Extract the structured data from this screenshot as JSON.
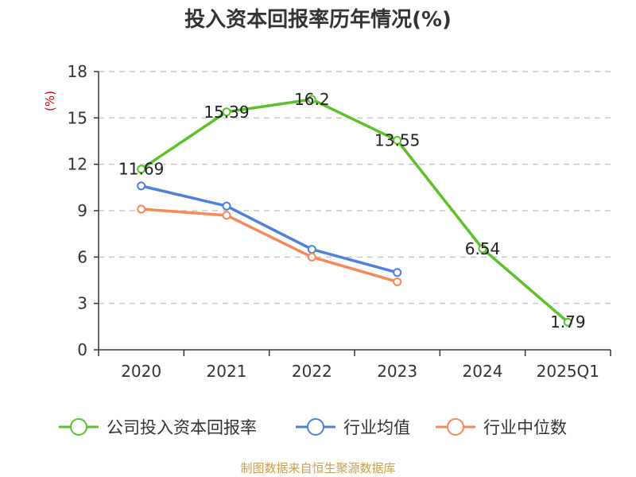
{
  "chart_data": {
    "type": "line",
    "title": "投入资本回报率历年情况(%)",
    "ylabel": "(%)",
    "xlabel": "",
    "categories": [
      "2020",
      "2021",
      "2022",
      "2023",
      "2024",
      "2025Q1"
    ],
    "ylim": [
      0,
      18
    ],
    "yticks": [
      0,
      3,
      6,
      9,
      12,
      15,
      18
    ],
    "grid": true,
    "legend_position": "bottom",
    "series": [
      {
        "name": "公司投入资本回报率",
        "color": "#5cc12b",
        "values": [
          11.69,
          15.39,
          16.2,
          13.55,
          6.54,
          1.79
        ],
        "labels": [
          "11.69",
          "15.39",
          "16.2",
          "13.55",
          "6.54",
          "1.79"
        ]
      },
      {
        "name": "行业均值",
        "color": "#4e80dc",
        "values": [
          10.6,
          9.3,
          6.5,
          5.0,
          null,
          null
        ]
      },
      {
        "name": "行业中位数",
        "color": "#f5895a",
        "values": [
          9.1,
          8.7,
          6.0,
          4.4,
          null,
          null
        ]
      }
    ]
  },
  "footer": {
    "source": "制图数据来自恒生聚源数据库"
  }
}
